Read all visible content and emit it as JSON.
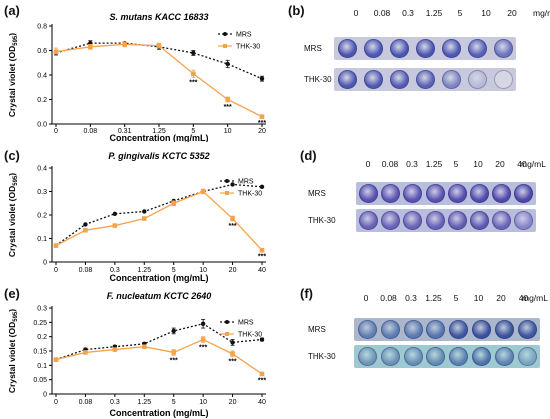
{
  "figure": {
    "colors": {
      "mrs": "#111111",
      "thk": "#f5a34a",
      "strip_b": "#c8c9dc",
      "strip_d": "#b7bede",
      "strip_f_mrs": "#aab7cc",
      "strip_f_thk": "#9fc9d2"
    },
    "panels": [
      {
        "label": "(a)",
        "chart_data": {
          "type": "line",
          "title": "S. mutans KACC 16833",
          "xlabel": "Concentration (mg/mL)",
          "ylabel": "Crystal violet (OD",
          "ylabel_sub": "595",
          "ylabel_end": ")",
          "categories": [
            "0",
            "0.08",
            "0.31",
            "1.25",
            "5",
            "10",
            "20"
          ],
          "ylim": [
            0,
            0.8
          ],
          "yticks": [
            "0.0",
            "0.2",
            "0.4",
            "0.6",
            "0.8"
          ],
          "legend": "top-right",
          "series": [
            {
              "name": "MRS",
              "values": [
                0.58,
                0.66,
                0.66,
                0.63,
                0.58,
                0.49,
                0.37
              ],
              "errors": [
                0.02,
                0.02,
                0.01,
                0.02,
                0.02,
                0.03,
                0.02
              ],
              "stars": [
                "",
                "",
                "",
                "",
                "",
                "",
                ""
              ]
            },
            {
              "name": "THK-30",
              "values": [
                0.59,
                0.63,
                0.65,
                0.64,
                0.41,
                0.2,
                0.06
              ],
              "errors": [
                0.03,
                0.02,
                0.02,
                0.02,
                0.03,
                0.02,
                0.01
              ],
              "stars": [
                "",
                "",
                "",
                "",
                "***",
                "***",
                "***"
              ]
            }
          ]
        }
      },
      {
        "label": "(c)",
        "chart_data": {
          "type": "line",
          "title": "P. gingivalis KCTC 5352",
          "xlabel": "Concentration (mg/mL)",
          "ylabel": "Crystal violet (OD",
          "ylabel_sub": "595",
          "ylabel_end": ")",
          "categories": [
            "0",
            "0.08",
            "0.3",
            "1.25",
            "5",
            "10",
            "20",
            "40"
          ],
          "ylim": [
            0,
            0.4
          ],
          "yticks": [
            "0",
            "0.1",
            "0.2",
            "0.3",
            "0.4"
          ],
          "legend": "top-right",
          "series": [
            {
              "name": "MRS",
              "values": [
                0.07,
                0.16,
                0.205,
                0.215,
                0.26,
                0.3,
                0.33,
                0.32
              ],
              "errors": [
                0,
                0,
                0,
                0,
                0,
                0,
                0,
                0
              ],
              "stars": [
                "",
                "",
                "",
                "",
                "",
                "",
                "",
                ""
              ]
            },
            {
              "name": "THK-30",
              "values": [
                0.07,
                0.135,
                0.155,
                0.185,
                0.25,
                0.3,
                0.185,
                0.05
              ],
              "errors": [
                0.005,
                0.005,
                0.005,
                0.005,
                0.01,
                0.01,
                0.01,
                0.005
              ],
              "stars": [
                "",
                "",
                "",
                "",
                "",
                "",
                "***",
                "***"
              ]
            }
          ]
        }
      },
      {
        "label": "(e)",
        "chart_data": {
          "type": "line",
          "title": "F. nucleatum KCTC 2640",
          "xlabel": "Concentration (mg/mL)",
          "ylabel": "Crystal violet (OD",
          "ylabel_sub": "595",
          "ylabel_end": ")",
          "categories": [
            "0",
            "0.08",
            "0.3",
            "1.25",
            "5",
            "10",
            "20",
            "40"
          ],
          "ylim": [
            0,
            0.3
          ],
          "yticks": [
            "0",
            "0.05",
            "0.1",
            "0.15",
            "0.2",
            "0.25",
            "0.3"
          ],
          "legend": "top-right",
          "series": [
            {
              "name": "MRS",
              "values": [
                0.12,
                0.155,
                0.165,
                0.175,
                0.22,
                0.245,
                0.18,
                0.19
              ],
              "errors": [
                0.005,
                0.005,
                0.005,
                0.005,
                0.01,
                0.015,
                0.01,
                0.005
              ],
              "stars": [
                "",
                "",
                "",
                "",
                "",
                "",
                "",
                ""
              ]
            },
            {
              "name": "THK-30",
              "values": [
                0.12,
                0.145,
                0.155,
                0.165,
                0.145,
                0.19,
                0.14,
                0.07
              ],
              "errors": [
                0.005,
                0.005,
                0.005,
                0.005,
                0.01,
                0.01,
                0.01,
                0.005
              ],
              "stars": [
                "",
                "",
                "",
                "",
                "***",
                "***",
                "***",
                "***"
              ]
            }
          ]
        }
      }
    ],
    "plates": [
      {
        "label": "(b)",
        "conc": [
          "0",
          "0.08",
          "0.3",
          "1.25",
          "5",
          "10",
          "20"
        ],
        "unit": "mg/mL",
        "rows": [
          "MRS",
          "THK-30"
        ],
        "wells": [
          [
            "#4a55b0",
            "#4b58b4",
            "#4a57b2",
            "#4b56b1",
            "#4c58b4",
            "#5460b8",
            "#6a73bd"
          ],
          [
            "#4d57b1",
            "#505ab3",
            "#525cb4",
            "#5963b6",
            "#7d85c4",
            "#b6bad8",
            "#d6d7e4"
          ]
        ]
      },
      {
        "label": "(d)",
        "conc": [
          "0",
          "0.08",
          "0.3",
          "1.25",
          "5",
          "10",
          "20",
          "40"
        ],
        "unit": "mg/mL",
        "rows": [
          "MRS",
          "THK-30"
        ],
        "wells": [
          [
            "#5a4fb0",
            "#5c52b2",
            "#5b51b1",
            "#5a50b0",
            "#564cad",
            "#5349ac",
            "#5148aa",
            "#4f46a8"
          ],
          [
            "#6a60b6",
            "#6b62b7",
            "#6a61b6",
            "#6860b5",
            "#645cb3",
            "#5f57b0",
            "#6c64b8",
            "#8a84c6"
          ]
        ]
      },
      {
        "label": "(f)",
        "conc": [
          "0",
          "0.08",
          "0.3",
          "1.25",
          "5",
          "10",
          "20",
          "40"
        ],
        "unit": "mg/mL",
        "rows": [
          "MRS",
          "THK-30"
        ],
        "wells": [
          [
            "#5f7fb2",
            "#5b7cb1",
            "#5a7ab0",
            "#5575ad",
            "#3e56a0",
            "#39519c",
            "#3a539d",
            "#3c569f"
          ],
          [
            "#6d95b8",
            "#6a92b6",
            "#678fb5",
            "#638bb3",
            "#5a80af",
            "#4f73a8",
            "#5d84b0",
            "#78a4bf"
          ]
        ]
      }
    ]
  }
}
